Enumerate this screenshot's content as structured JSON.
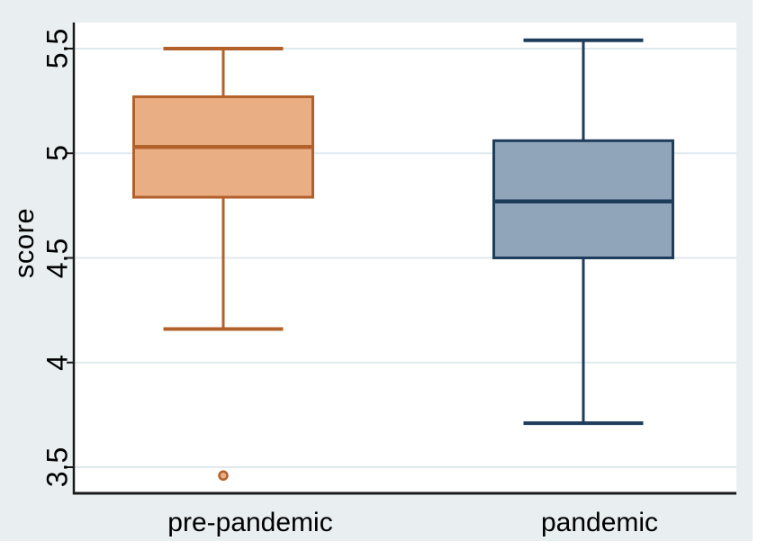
{
  "figure": {
    "background_color": "#e9eef1",
    "plot_background_color": "#ffffff",
    "gridline_color": "#e0eaee",
    "axis_color": "#1a1a1a",
    "text_color": "#000000"
  },
  "chart_data": {
    "type": "box",
    "title": "",
    "xlabel": "",
    "ylabel": "score",
    "categories": [
      "pre-pandemic",
      "pandemic"
    ],
    "yticks": [
      "3.5",
      "4",
      "4.5",
      "5",
      "5.5"
    ],
    "ytick_values": [
      3.5,
      4.0,
      4.5,
      5.0,
      5.5
    ],
    "ylim": [
      3.37,
      5.62
    ],
    "grid": true,
    "legend": "none",
    "boxes": [
      {
        "category": "pre-pandemic",
        "whisker_low": 4.16,
        "q1": 4.79,
        "median": 5.03,
        "q3": 5.27,
        "whisker_high": 5.5,
        "outliers": [
          3.46
        ],
        "stroke_color": "#b2612b",
        "fill_color": "#e9ae84"
      },
      {
        "category": "pandemic",
        "whisker_low": 3.71,
        "q1": 4.5,
        "median": 4.77,
        "q3": 5.06,
        "whisker_high": 5.54,
        "outliers": [],
        "stroke_color": "#1e3c5c",
        "fill_color": "#90a4ba"
      }
    ]
  }
}
